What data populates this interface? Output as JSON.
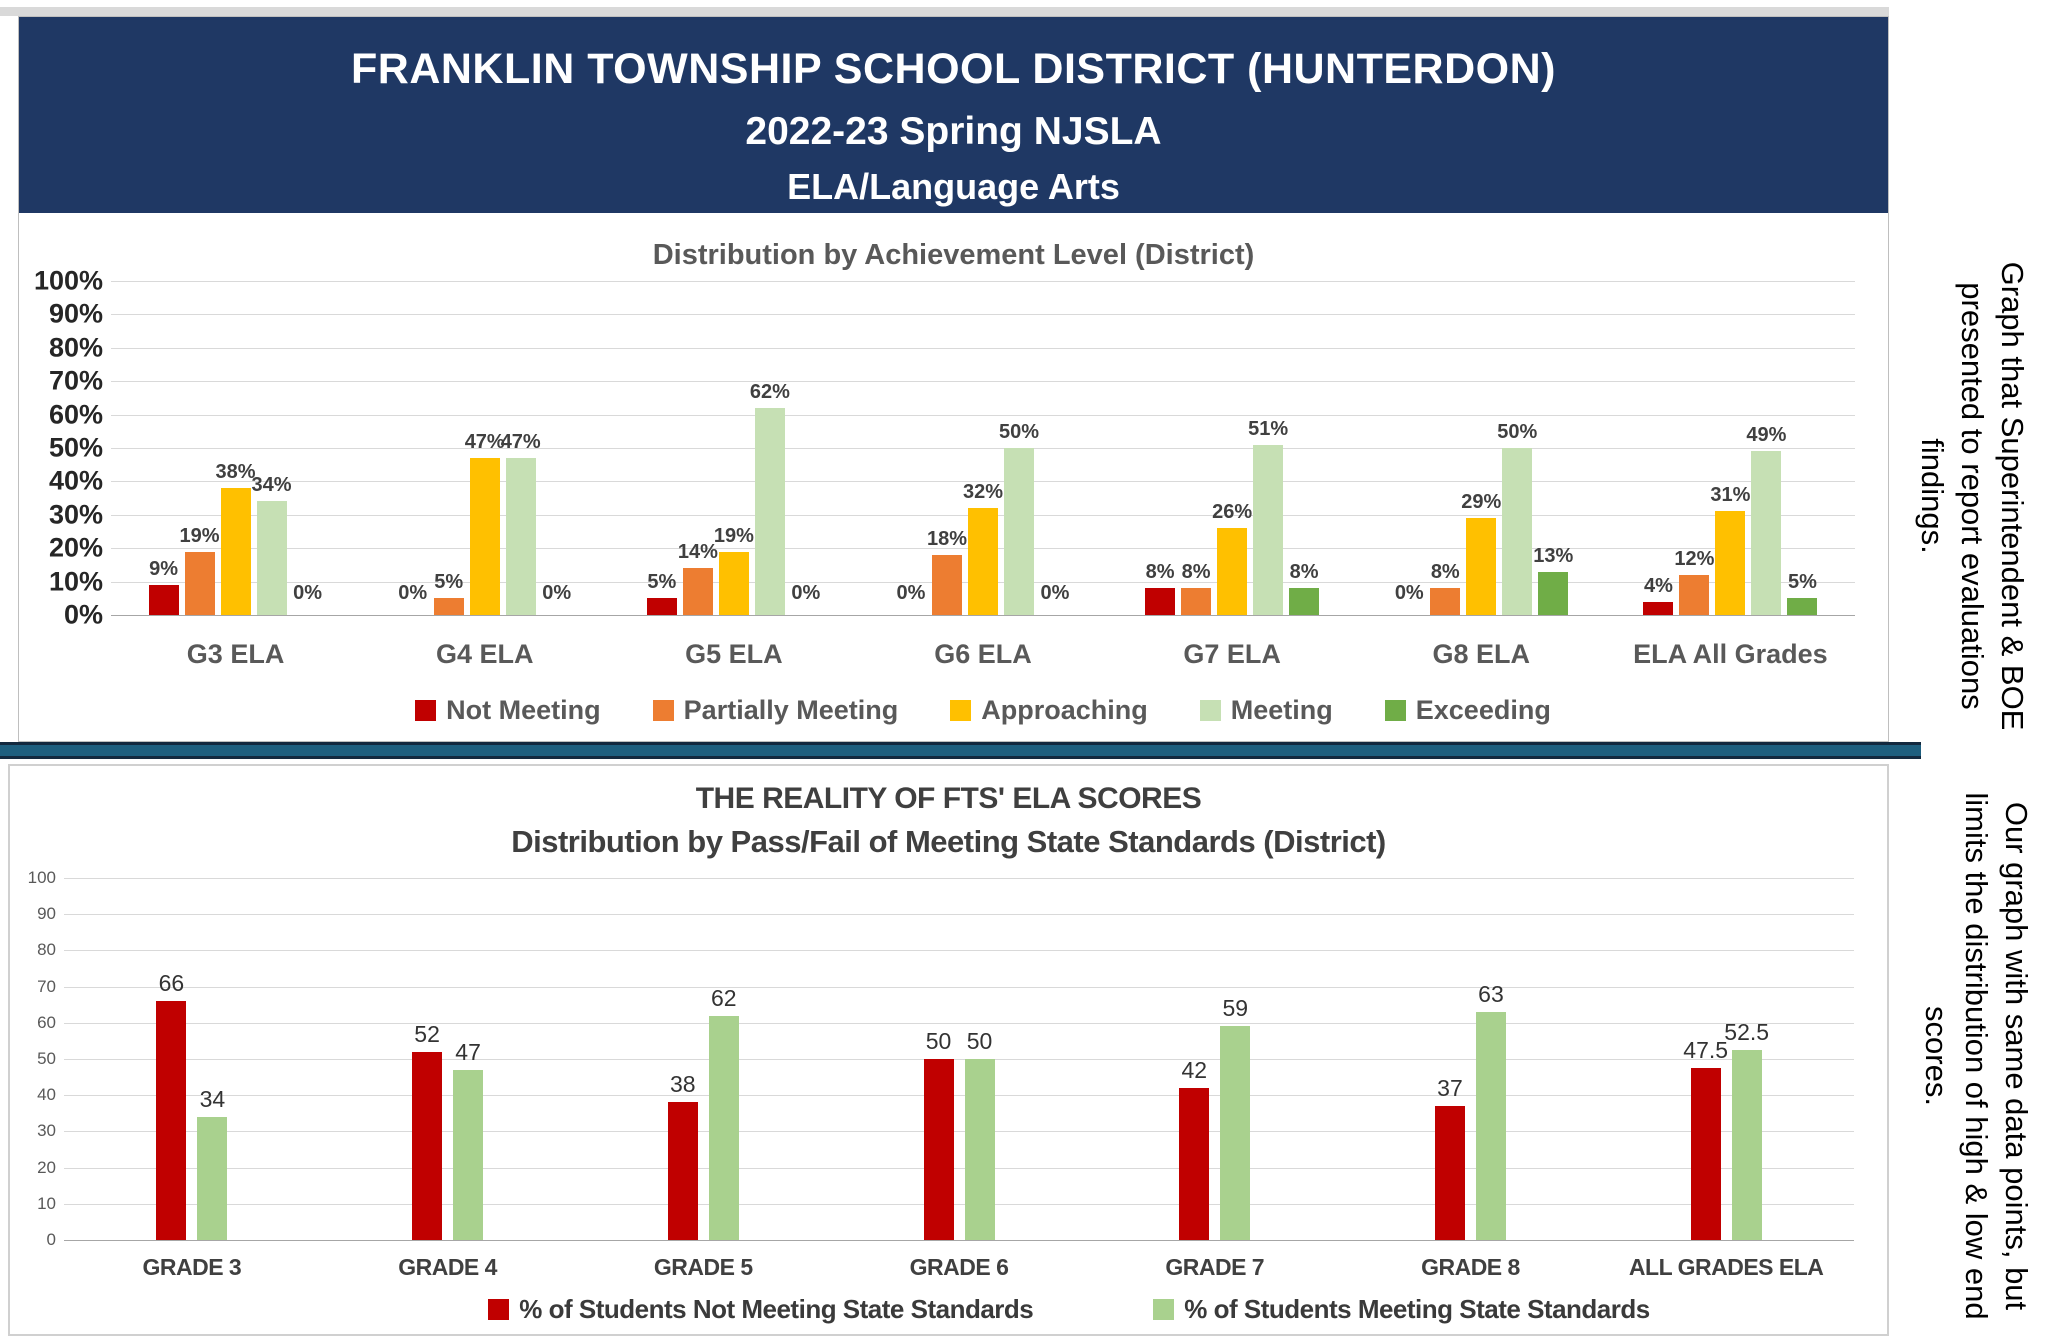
{
  "header": {
    "line1": "FRANKLIN TOWNSHIP SCHOOL DISTRICT (HUNTERDON)",
    "line2": "2022-23 Spring NJSLA",
    "line3": "ELA/Language Arts"
  },
  "annotations": {
    "top": "Graph that Superintendent & BOE\npresented to report evaluations\nfindings.",
    "bottom": "Our graph with same data points, but\nlimits the distribution of high & low end\nscores."
  },
  "chart_data": [
    {
      "type": "bar",
      "title": "Distribution by Achievement Level (District)",
      "categories": [
        "G3 ELA",
        "G4 ELA",
        "G5 ELA",
        "G6 ELA",
        "G7 ELA",
        "G8 ELA",
        "ELA All Grades"
      ],
      "series": [
        {
          "name": "Not Meeting",
          "color": "#C00000",
          "values": [
            9,
            0,
            5,
            0,
            8,
            0,
            4
          ]
        },
        {
          "name": "Partially Meeting",
          "color": "#ED7D31",
          "values": [
            19,
            5,
            14,
            18,
            8,
            8,
            12
          ]
        },
        {
          "name": "Approaching",
          "color": "#FFC000",
          "values": [
            38,
            47,
            19,
            32,
            26,
            29,
            31
          ]
        },
        {
          "name": "Meeting",
          "color": "#C6E0B4",
          "values": [
            34,
            47,
            62,
            50,
            51,
            50,
            49
          ]
        },
        {
          "name": "Exceeding",
          "color": "#70AD47",
          "values": [
            0,
            0,
            0,
            0,
            8,
            13,
            5
          ]
        }
      ],
      "ylim": [
        0,
        100
      ],
      "yticks": [
        "100%",
        "90%",
        "80%",
        "70%",
        "60%",
        "50%",
        "40%",
        "30%",
        "20%",
        "10%",
        "0%"
      ],
      "label_suffix": "%",
      "grid": "on",
      "legend_position": "bottom"
    },
    {
      "type": "bar",
      "title_line1": "THE REALITY OF FTS' ELA SCORES",
      "title_line2": "Distribution by Pass/Fail of Meeting State Standards (District)",
      "categories": [
        "GRADE 3",
        "GRADE 4",
        "GRADE 5",
        "GRADE 6",
        "GRADE 7",
        "GRADE 8",
        "ALL GRADES ELA"
      ],
      "series": [
        {
          "name": "% of Students Not Meeting State Standards",
          "color": "#C00000",
          "values": [
            66,
            52,
            38,
            50,
            42,
            37,
            47.5
          ]
        },
        {
          "name": "% of Students Meeting State Standards",
          "color": "#A9D18E",
          "values": [
            34,
            47,
            62,
            50,
            59,
            63,
            52.5
          ]
        }
      ],
      "ylim": [
        0,
        100
      ],
      "yticks": [
        "100",
        "90",
        "80",
        "70",
        "60",
        "50",
        "40",
        "30",
        "20",
        "10",
        "0"
      ],
      "label_suffix": "",
      "grid": "on",
      "legend_position": "bottom"
    }
  ]
}
